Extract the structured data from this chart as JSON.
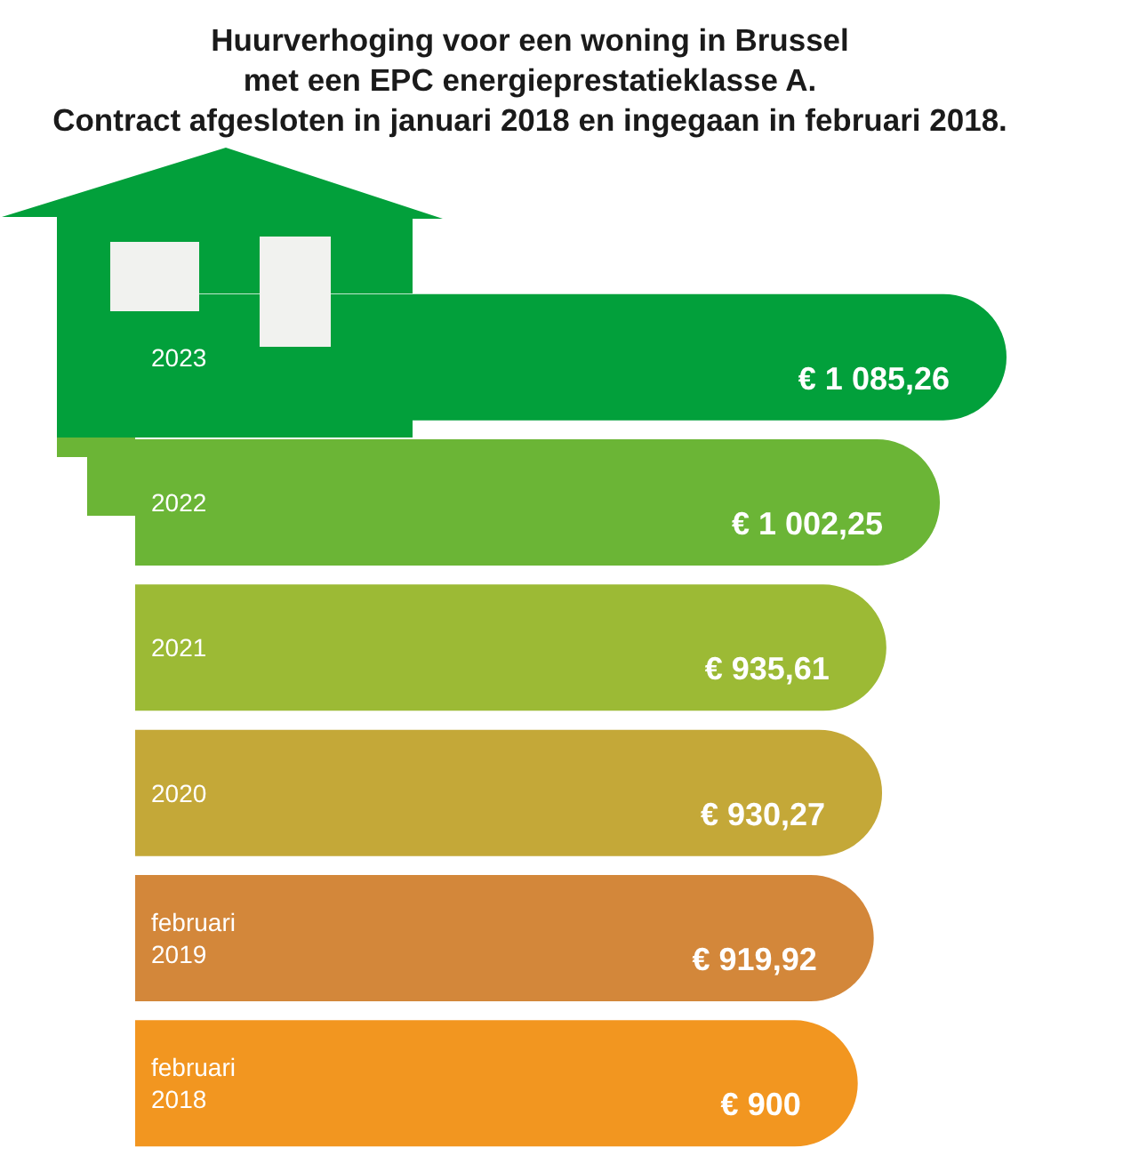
{
  "chart_data": {
    "type": "bar",
    "orientation": "horizontal",
    "title": "Huurverhoging voor een woning in Brussel\nmet een EPC energieprestatieklasse A.\nContract afgesloten in januari 2018 en ingegaan in februari 2018.",
    "categories": [
      "2023",
      "2022",
      "2021",
      "2020",
      "februari 2019",
      "februari 2018"
    ],
    "values": [
      1085.26,
      1002.25,
      935.61,
      930.27,
      919.92,
      900
    ],
    "value_labels": [
      "€ 1 085,26",
      "€ 1 002,25",
      "€ 935,61",
      "€ 930,27",
      "€ 919,92",
      "€ 900"
    ],
    "colors": [
      "#02a03b",
      "#6bb536",
      "#9cba35",
      "#c4a838",
      "#d3873a",
      "#f29620"
    ],
    "tick_labels": "y"
  }
}
